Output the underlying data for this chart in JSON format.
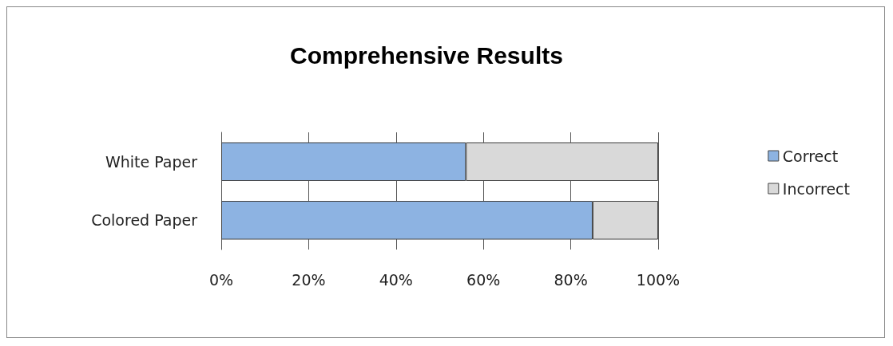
{
  "chart_data": {
    "type": "bar",
    "title": "Comprehensive Results",
    "orientation": "horizontal",
    "stacked": true,
    "categories": [
      "White Paper",
      "Colored Paper"
    ],
    "series": [
      {
        "name": "Correct",
        "color": "#8db3e2",
        "values": [
          56,
          85
        ]
      },
      {
        "name": "Incorrect",
        "color": "#d9d9d9",
        "values": [
          44,
          15
        ]
      }
    ],
    "xlim": [
      0,
      100
    ],
    "xticks": [
      {
        "value": 0,
        "label": "0%"
      },
      {
        "value": 20,
        "label": "20%"
      },
      {
        "value": 40,
        "label": "40%"
      },
      {
        "value": 60,
        "label": "60%"
      },
      {
        "value": 80,
        "label": "80%"
      },
      {
        "value": 100,
        "label": "100%"
      }
    ],
    "grid": "x",
    "legend": "right"
  }
}
